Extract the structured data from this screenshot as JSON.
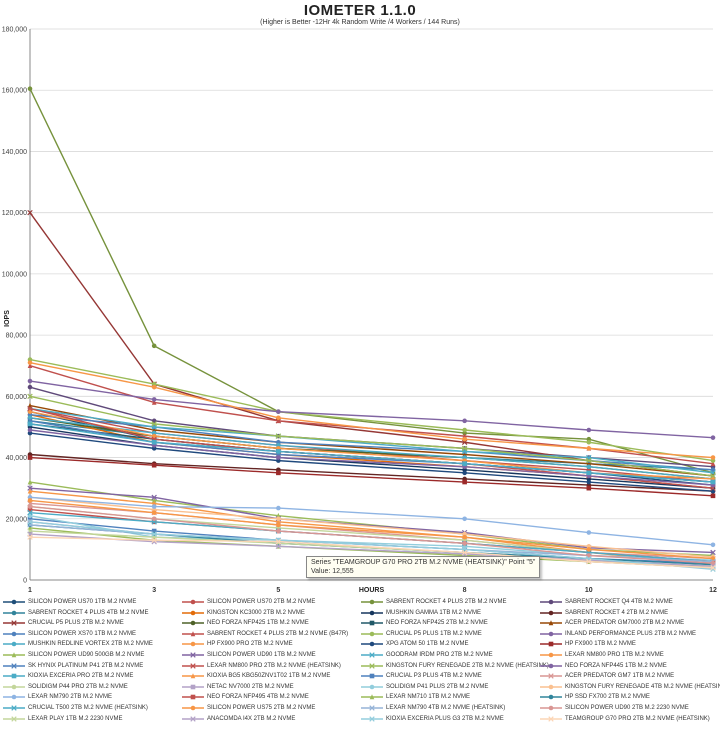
{
  "header": {
    "title": "IOMETER 1.1.0",
    "subtitle": "(Higher is Better -12Hr 4k Random Write /4 Workers / 144 Runs)"
  },
  "tooltip": {
    "series_line": "Series \"TEAMGROUP G70 PRO 2TB M.2 NVME (HEATSINK)\" Point \"5\"",
    "value_line": "Value: 12,555"
  },
  "chart_data": {
    "type": "line",
    "title": "IOMETER 1.1.0",
    "subtitle": "(Higher is Better -12Hr 4k Random Write /4 Workers / 144 Runs)",
    "xlabel": "HOURS",
    "ylabel": "IOPS",
    "x": [
      1,
      3,
      5,
      8,
      10,
      12
    ],
    "xticks": [
      "1",
      "3",
      "5",
      "8",
      "10",
      "12"
    ],
    "ylim": [
      0,
      180000
    ],
    "yticks": [
      "0",
      "20,000",
      "40,000",
      "60,000",
      "80,000",
      "100,000",
      "120,000",
      "140,000",
      "160,000",
      "180,000"
    ],
    "grid": "horizontal",
    "legend_position": "bottom",
    "series": [
      {
        "name": "SILICON POWER US70 1TB M.2 NVME",
        "color": "#1f4e79",
        "marker": "circle",
        "values": [
          55000,
          46000,
          42000,
          38000,
          35000,
          31000
        ]
      },
      {
        "name": "SILICON POWER US70 2TB M.2 NVME",
        "color": "#c0504d",
        "marker": "circle",
        "values": [
          56000,
          48000,
          44000,
          39000,
          36000,
          32000
        ]
      },
      {
        "name": "SABRENT ROCKET 4 PLUS 2TB M.2 NVME",
        "color": "#76923c",
        "marker": "circle",
        "values": [
          160500,
          76500,
          55000,
          48000,
          46000,
          35000
        ]
      },
      {
        "name": "SABRENT ROCKET Q4 4TB M.2 NVME",
        "color": "#5f497a",
        "marker": "circle",
        "values": [
          63000,
          52000,
          47000,
          43000,
          40000,
          37000
        ]
      },
      {
        "name": "SABRENT ROCKET 4 PLUS 4TB M.2 NVME",
        "color": "#31849b",
        "marker": "circle",
        "values": [
          52000,
          47000,
          43000,
          40000,
          38000,
          36000
        ]
      },
      {
        "name": "KINGSTON KC3000 2TB M.2 NVME",
        "color": "#e36c09",
        "marker": "circle",
        "values": [
          54000,
          45000,
          41000,
          37000,
          34000,
          30000
        ]
      },
      {
        "name": "MUSHKIN GAMMA 1TB M.2 NVME",
        "color": "#17375e",
        "marker": "circle",
        "values": [
          50000,
          44000,
          40000,
          36000,
          33000,
          30000
        ]
      },
      {
        "name": "SABRENT ROCKET 4 2TB M.2 NVME",
        "color": "#632523",
        "marker": "circle",
        "values": [
          41000,
          38000,
          36000,
          33000,
          31000,
          29000
        ]
      },
      {
        "name": "CRUCIAL P5 PLUS 2TB M.2 NVME",
        "color": "#953735",
        "marker": "x",
        "values": [
          120000,
          64000,
          52000,
          45000,
          39000,
          34000
        ]
      },
      {
        "name": "NEO FORZA NFP425 1TB M.2 NVME",
        "color": "#4f6228",
        "marker": "circle",
        "values": [
          53000,
          47000,
          43000,
          40000,
          37000,
          33000
        ]
      },
      {
        "name": "NEO FORZA NFP425 2TB M.2 NVME",
        "color": "#215968",
        "marker": "square",
        "values": [
          51000,
          46000,
          42000,
          38000,
          35000,
          32000
        ]
      },
      {
        "name": "ACER PREDATOR GM7000 2TB M.2 NVME",
        "color": "#974806",
        "marker": "triangle",
        "values": [
          57000,
          49000,
          45000,
          41000,
          38000,
          34000
        ]
      },
      {
        "name": "SILICON POWER XS70 1TB M.2 NVME",
        "color": "#4f81bd",
        "marker": "circle",
        "values": [
          54000,
          50000,
          45000,
          42000,
          39000,
          36000
        ]
      },
      {
        "name": "SABRENT ROCKET 4 PLUS 2TB M.2 NVME (B47R)",
        "color": "#c0504d",
        "marker": "triangle",
        "values": [
          70000,
          58000,
          52000,
          47000,
          43000,
          38000
        ]
      },
      {
        "name": "CRUCIAL P5 PLUS 1TB M.2 NVME",
        "color": "#9bbb59",
        "marker": "circle",
        "values": [
          72000,
          64000,
          55000,
          49000,
          45000,
          39000
        ]
      },
      {
        "name": "INLAND PERFORMANCE PLUS 2TB M.2 NVME",
        "color": "#8064a2",
        "marker": "circle",
        "values": [
          65000,
          59000,
          55000,
          52000,
          49000,
          46500
        ]
      },
      {
        "name": "MUSHKIN REDLINE VORTEX 2TB M.2 NVME",
        "color": "#4bacc6",
        "marker": "circle",
        "values": [
          53000,
          48000,
          44000,
          40000,
          37000,
          33000
        ]
      },
      {
        "name": "HP FX900 PRO 2TB M.2 NVME",
        "color": "#f79646",
        "marker": "circle",
        "values": [
          71000,
          63000,
          53000,
          46000,
          43000,
          40000
        ]
      },
      {
        "name": "XPG ATOM 50 1TB M.2 NVME",
        "color": "#1f497d",
        "marker": "circle",
        "values": [
          48000,
          43000,
          39000,
          35000,
          32000,
          29000
        ]
      },
      {
        "name": "HP FX900 1TB M.2 NVME",
        "color": "#9c2a2a",
        "marker": "square",
        "values": [
          40000,
          37500,
          35000,
          32000,
          30000,
          27500
        ]
      },
      {
        "name": "SILICON POWER UD90 500GB M.2 NVME",
        "color": "#9bbb59",
        "marker": "triangle",
        "values": [
          32000,
          26000,
          21000,
          15000,
          10000,
          8000
        ]
      },
      {
        "name": "SILICON POWER UD90 1TB M.2 NVME",
        "color": "#8064a2",
        "marker": "x",
        "values": [
          30000,
          27000,
          20000,
          15500,
          10500,
          9000
        ]
      },
      {
        "name": "GOODRAM IRDM PRO 2TB M.2 NVME",
        "color": "#4bacc6",
        "marker": "x",
        "values": [
          56000,
          50000,
          47000,
          42000,
          40000,
          35000
        ]
      },
      {
        "name": "LEXAR NM800 PRO 1TB M.2 NVME",
        "color": "#f79646",
        "marker": "circle",
        "values": [
          55000,
          47000,
          43000,
          39000,
          35000,
          33000
        ]
      },
      {
        "name": "SK HYNIX PLATINUM P41 2TB M.2 NVME",
        "color": "#4f81bd",
        "marker": "x",
        "values": [
          52000,
          45000,
          41000,
          38000,
          35000,
          32000
        ]
      },
      {
        "name": "LEXAR NM800 PRO 2TB M.2 NVME (HEATSINK)",
        "color": "#c0504d",
        "marker": "x",
        "values": [
          56000,
          46000,
          42000,
          38000,
          34000,
          30000
        ]
      },
      {
        "name": "KINGSTON FURY RENEGADE 2TB M.2 NVME (HEATSINK)",
        "color": "#9bbb59",
        "marker": "x",
        "values": [
          60000,
          51000,
          47000,
          43000,
          39000,
          34000
        ]
      },
      {
        "name": "NEO FORZA NFP445 1TB M.2 NVME",
        "color": "#8064a2",
        "marker": "circle",
        "values": [
          49000,
          44000,
          40000,
          37000,
          34000,
          31000
        ]
      },
      {
        "name": "KIOXIA EXCERIA PRO 2TB M.2 NVME",
        "color": "#4bacc6",
        "marker": "square",
        "values": [
          51000,
          45000,
          42000,
          38000,
          35000,
          32000
        ]
      },
      {
        "name": "KIOXIA BG5 KBG50ZNV1T02 1TB M.2 NVME",
        "color": "#f79646",
        "marker": "triangle",
        "values": [
          29000,
          25000,
          19000,
          14000,
          9000,
          5000
        ]
      },
      {
        "name": "CRUCIAL P3 PLUS 4TB M.2 NVME",
        "color": "#4f81bd",
        "marker": "square",
        "values": [
          20000,
          16000,
          13000,
          10000,
          7000,
          5500
        ]
      },
      {
        "name": "ACER PREDATOR GM7 1TB M.2 NVME",
        "color": "#d99694",
        "marker": "x",
        "values": [
          25000,
          22000,
          18000,
          13000,
          9000,
          7000
        ]
      },
      {
        "name": "SOLIDIGM P44 PRO 2TB M.2 NVME",
        "color": "#c3d69b",
        "marker": "circle",
        "values": [
          24000,
          20000,
          17000,
          13000,
          9000,
          6000
        ]
      },
      {
        "name": "NETAC NV7000 2TB M.2 NVME",
        "color": "#b3a2c7",
        "marker": "square",
        "values": [
          19000,
          15000,
          12000,
          9000,
          6000,
          4000
        ]
      },
      {
        "name": "SOLIDIGM P41 PLUS 2TB M.2 NVME",
        "color": "#92cddc",
        "marker": "circle",
        "values": [
          21000,
          14000,
          13000,
          11000,
          8000,
          6500
        ]
      },
      {
        "name": "KINGSTON FURY RENEGADE 4TB M.2 NVME (HEATSINK)",
        "color": "#fac090",
        "marker": "circle",
        "values": [
          27000,
          23000,
          20000,
          15000,
          11000,
          7500
        ]
      },
      {
        "name": "LEXAR NM790 2TB M.2 NVME",
        "color": "#8eb4e3",
        "marker": "circle",
        "values": [
          27000,
          24000,
          23500,
          20000,
          15500,
          11500
        ]
      },
      {
        "name": "NEO FORZA NFP495 4TB M.2 NVME",
        "color": "#c0504d",
        "marker": "square",
        "values": [
          23000,
          19000,
          16000,
          12000,
          9000,
          6000
        ]
      },
      {
        "name": "LEXAR NM710 1TB M.2 NVME",
        "color": "#9bbb59",
        "marker": "triangle",
        "values": [
          17000,
          13000,
          11000,
          8000,
          6000,
          4500
        ]
      },
      {
        "name": "HP SSD FX700 2TB M.2 NVME",
        "color": "#31859c",
        "marker": "circle",
        "values": [
          18000,
          15000,
          12000,
          9000,
          7000,
          5000
        ]
      },
      {
        "name": "CRUCIAL T500 2TB M.2 NVME (HEATSINK)",
        "color": "#4bacc6",
        "marker": "x",
        "values": [
          22000,
          19000,
          16000,
          12000,
          9000,
          6000
        ]
      },
      {
        "name": "SILICON POWER US75 2TB M.2 NVME",
        "color": "#f79646",
        "marker": "circle",
        "values": [
          26000,
          22000,
          18000,
          14000,
          10000,
          7000
        ]
      },
      {
        "name": "LEXAR NM790 4TB M.2 NVME (HEATSINK)",
        "color": "#95b3d7",
        "marker": "x",
        "values": [
          18000,
          15000,
          13000,
          10000,
          8000,
          6000
        ]
      },
      {
        "name": "SILICON POWER UD90 2TB M.2 2230 NVME",
        "color": "#d99694",
        "marker": "circle",
        "values": [
          24000,
          20000,
          16000,
          12000,
          8000,
          5500
        ]
      },
      {
        "name": "LEXAR PLAY 1TB M.2 2230 NVME",
        "color": "#c3d69b",
        "marker": "x",
        "values": [
          16000,
          14000,
          12000,
          9000,
          6000,
          4000
        ]
      },
      {
        "name": "ANACOMDA I4X 2TB M.2 NVME",
        "color": "#b3a2c7",
        "marker": "x",
        "values": [
          15000,
          12500,
          11000,
          8500,
          6500,
          4500
        ]
      },
      {
        "name": "KIOXIA EXCERIA PLUS G3 2TB M.2 NVME",
        "color": "#93cddd",
        "marker": "x",
        "values": [
          19000,
          15000,
          13000,
          10000,
          7000,
          3500
        ]
      },
      {
        "name": "TEAMGROUP G70 PRO 2TB M.2 NVME (HEATSINK)",
        "color": "#fcd5b5",
        "marker": "x",
        "values": [
          14000,
          13000,
          12555,
          9000,
          6000,
          4000
        ]
      }
    ]
  }
}
